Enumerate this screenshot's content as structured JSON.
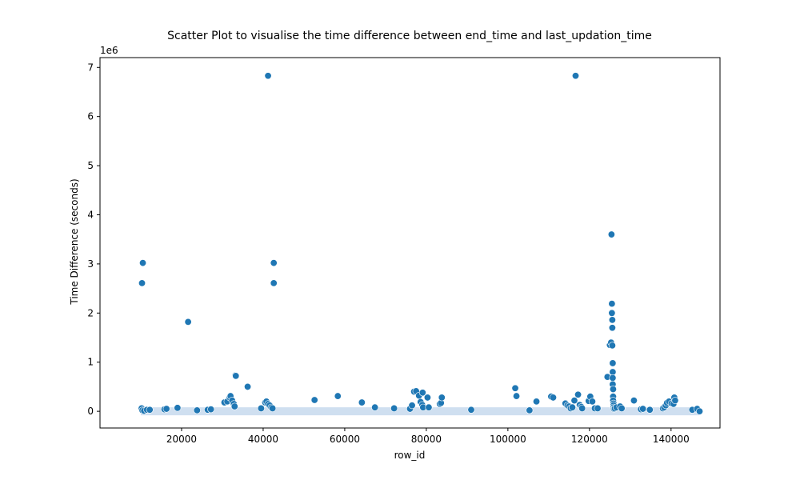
{
  "chart_data": {
    "type": "scatter",
    "title": "Scatter Plot to visualise the time difference between end_time and last_updation_time",
    "xlabel": "row_id",
    "ylabel": "Time Difference (seconds)",
    "y_offset_label": "1e6",
    "xlim": [
      0,
      152000
    ],
    "ylim": [
      -340000,
      7200000
    ],
    "xticks": [
      20000,
      40000,
      60000,
      80000,
      100000,
      120000,
      140000
    ],
    "yticks": [
      0,
      1000000,
      2000000,
      3000000,
      4000000,
      5000000,
      6000000,
      7000000
    ],
    "ytick_labels": [
      "0",
      "1",
      "2",
      "3",
      "4",
      "5",
      "6",
      "7"
    ],
    "grid": false,
    "point_color": "#1f77b4",
    "series": [
      {
        "x": [
          10200,
          10400,
          10300,
          10500,
          10800,
          11500,
          12200,
          15800,
          16300,
          19000,
          21600,
          23800,
          26400,
          27200,
          30500,
          31200,
          31800,
          32000,
          32400,
          32800,
          33000,
          33200,
          33300,
          36200,
          39500,
          40500,
          40800,
          41200,
          41600,
          42000,
          42300,
          42600,
          42600,
          52600,
          58300,
          64200,
          67400,
          72100,
          76000,
          76500,
          77000,
          77500,
          78200,
          78600,
          79000,
          79100,
          79200,
          80300,
          80600,
          83300,
          83600,
          83800,
          91000,
          101800,
          102100,
          105300,
          107000,
          110600,
          111100,
          114100,
          114600,
          115000,
          115400,
          115800,
          116300,
          116600,
          117200,
          117600,
          118000,
          118200,
          119800,
          120200,
          120700,
          121300,
          122000,
          124400,
          125000,
          125300,
          125400,
          125500,
          125500,
          125600,
          125600,
          125600,
          125700,
          125700,
          125700,
          125700,
          125800,
          125800,
          125800,
          125900,
          125900,
          125900,
          126000,
          126200,
          126600,
          127500,
          127900,
          130900,
          132600,
          133100,
          134800,
          138000,
          138300,
          138700,
          139000,
          139500,
          140100,
          140600,
          140800,
          141000,
          145200,
          146400,
          147000
        ],
        "y": [
          60000,
          20000,
          2610000,
          3020000,
          10000,
          30000,
          30000,
          40000,
          50000,
          70000,
          1820000,
          20000,
          30000,
          40000,
          180000,
          200000,
          280000,
          310000,
          220000,
          150000,
          100000,
          730000,
          720000,
          500000,
          60000,
          180000,
          200000,
          150000,
          120000,
          80000,
          60000,
          3020000,
          2610000,
          230000,
          310000,
          180000,
          80000,
          60000,
          50000,
          120000,
          400000,
          410000,
          320000,
          190000,
          130000,
          380000,
          80000,
          280000,
          80000,
          150000,
          170000,
          280000,
          30000,
          470000,
          310000,
          20000,
          200000,
          300000,
          280000,
          160000,
          120000,
          100000,
          60000,
          80000,
          220000,
          6830000,
          340000,
          130000,
          90000,
          60000,
          210000,
          300000,
          200000,
          60000,
          60000,
          700000,
          1350000,
          1400000,
          3600000,
          2190000,
          2000000,
          1860000,
          1700000,
          1340000,
          980000,
          800000,
          680000,
          550000,
          450000,
          300000,
          220000,
          160000,
          120000,
          80000,
          50000,
          60000,
          80000,
          100000,
          60000,
          220000,
          40000,
          50000,
          30000,
          60000,
          80000,
          120000,
          170000,
          200000,
          160000,
          150000,
          280000,
          220000,
          30000,
          50000,
          0
        ],
        "extra_x": [
          41200,
          116600
        ],
        "extra_y": [
          6830000,
          6830000
        ]
      }
    ]
  }
}
